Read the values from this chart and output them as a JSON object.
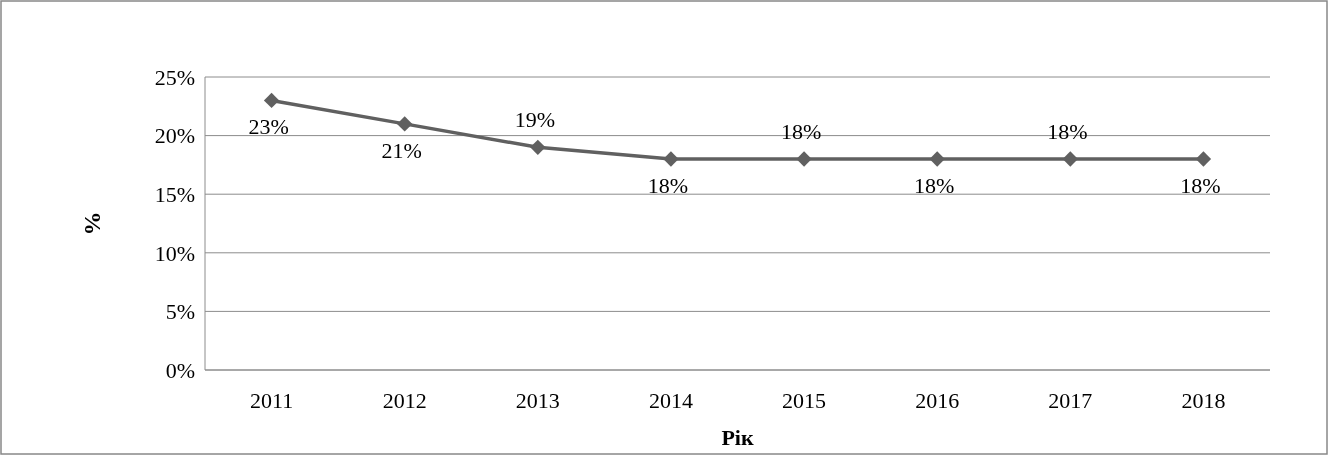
{
  "chart_data": {
    "type": "line",
    "xlabel": "Рік",
    "ylabel": "%",
    "categories": [
      "2011",
      "2012",
      "2013",
      "2014",
      "2015",
      "2016",
      "2017",
      "2018"
    ],
    "series": [
      {
        "color": "#606060",
        "values": [
          23,
          21,
          19,
          18,
          18,
          18,
          18,
          18
        ],
        "value_labels": [
          "23%",
          "21%",
          "19%",
          "18%",
          "18%",
          "18%",
          "18%",
          "18%"
        ]
      }
    ],
    "ylim": [
      0,
      25
    ],
    "yticks": [
      {
        "value": 0,
        "label": "0%"
      },
      {
        "value": 5,
        "label": "5%"
      },
      {
        "value": 10,
        "label": "10%"
      },
      {
        "value": 15,
        "label": "15%"
      },
      {
        "value": 20,
        "label": "20%"
      },
      {
        "value": 25,
        "label": "25%"
      }
    ],
    "grid": "y",
    "marker": "diamond",
    "line_style": "solid"
  }
}
